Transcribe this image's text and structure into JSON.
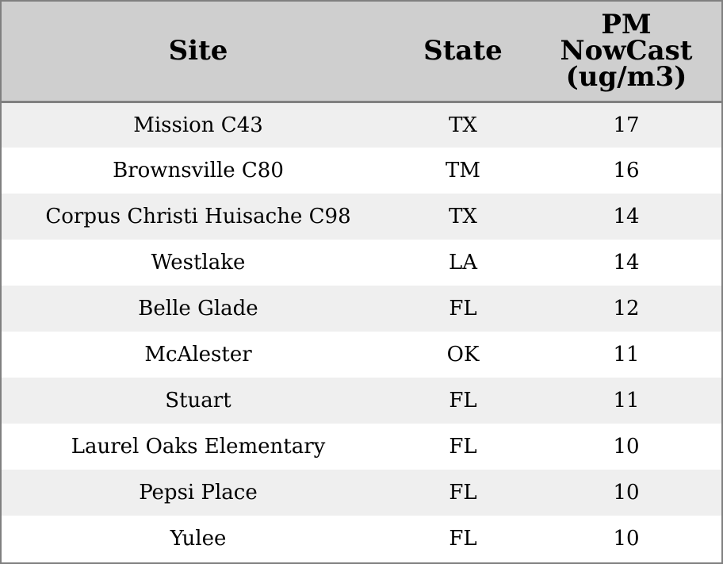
{
  "chart_data": {
    "type": "table",
    "columns": [
      "Site",
      "State",
      "PM NowCast (ug/m3)"
    ],
    "header_lines": {
      "site": [
        "Site"
      ],
      "state": [
        "State"
      ],
      "pm": [
        "PM",
        "NowCast",
        "(ug/m3)"
      ]
    },
    "rows": [
      {
        "site": "Mission C43",
        "state": "TX",
        "pm": 17
      },
      {
        "site": "Brownsville C80",
        "state": "TM",
        "pm": 16
      },
      {
        "site": "Corpus Christi Huisache C98",
        "state": "TX",
        "pm": 14
      },
      {
        "site": "Westlake",
        "state": "LA",
        "pm": 14
      },
      {
        "site": "Belle Glade",
        "state": "FL",
        "pm": 12
      },
      {
        "site": "McAlester",
        "state": "OK",
        "pm": 11
      },
      {
        "site": "Stuart",
        "state": "FL",
        "pm": 11
      },
      {
        "site": "Laurel Oaks Elementary",
        "state": "FL",
        "pm": 10
      },
      {
        "site": "Pepsi Place",
        "state": "FL",
        "pm": 10
      },
      {
        "site": "Yulee",
        "state": "FL",
        "pm": 10
      }
    ],
    "colors": {
      "header_bg": "#cfcfcf",
      "row_alt_bg": "#efefef",
      "row_bg": "#ffffff",
      "border": "#808080"
    }
  }
}
